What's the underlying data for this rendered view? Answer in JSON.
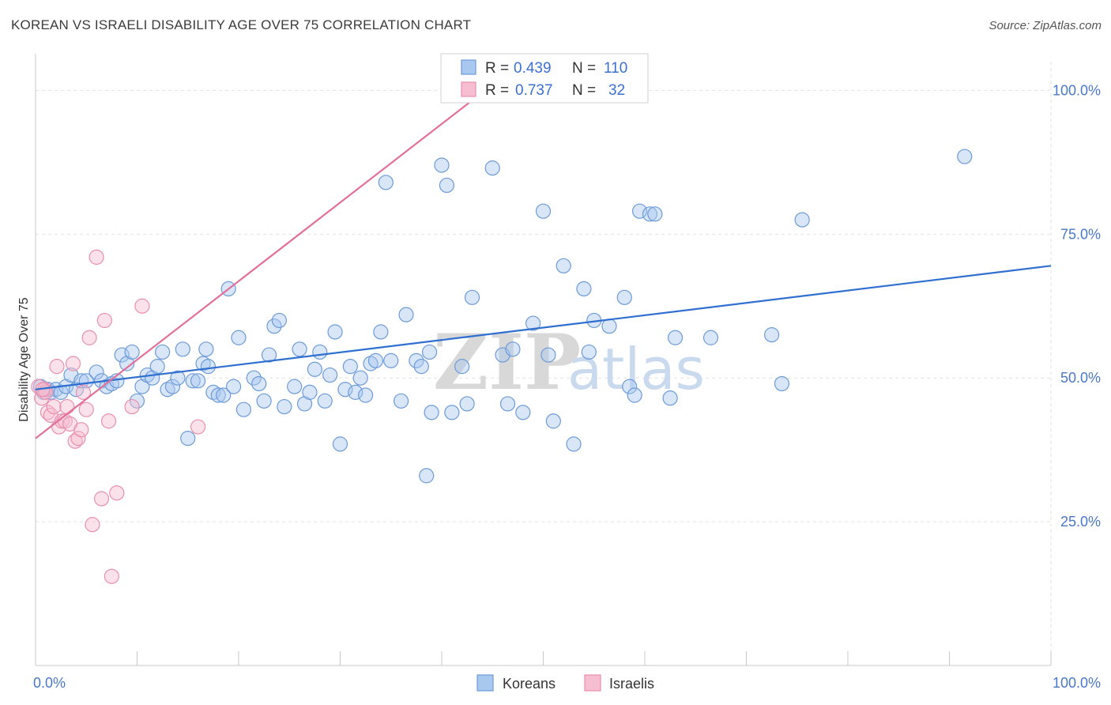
{
  "title": "KOREAN VS ISRAELI DISABILITY AGE OVER 75 CORRELATION CHART",
  "source": "Source: ZipAtlas.com",
  "watermark": {
    "zip": "ZIP",
    "atlas": "atlas"
  },
  "colors": {
    "korean_fill": "#a9c8ef",
    "korean_stroke": "#6d9bd8",
    "korean_line": "#2f6fd0",
    "israeli_fill": "#f6bed0",
    "israeli_stroke": "#e98fae",
    "israeli_line": "#e0709a",
    "axis_text": "#4a78c8",
    "grid": "#e2e2e2"
  },
  "legend": {
    "rows": [
      {
        "r_label": "R =",
        "r_value": "0.439",
        "n_label": "N =",
        "n_value": "110"
      },
      {
        "r_label": "R =",
        "r_value": "0.737",
        "n_label": "N =",
        "n_value": "32"
      }
    ]
  },
  "bottom_legend": [
    "Koreans",
    "Israelis"
  ],
  "chart_data": {
    "type": "scatter",
    "title": "KOREAN VS ISRAELI DISABILITY AGE OVER 75 CORRELATION CHART",
    "xlabel": "",
    "ylabel": "Disability Age Over 75",
    "xlim": [
      0,
      100
    ],
    "ylim": [
      0,
      105
    ],
    "x_tick_labels": [
      "0.0%",
      "100.0%"
    ],
    "y_ticks": [
      {
        "value": 100,
        "label": "100.0%"
      },
      {
        "value": 75,
        "label": "75.0%"
      },
      {
        "value": 50,
        "label": "50.0%"
      },
      {
        "value": 25,
        "label": "25.0%"
      }
    ],
    "x_minor_ticks": [
      0,
      10,
      20,
      30,
      40,
      50,
      60,
      70,
      80,
      90,
      100
    ],
    "grid": true,
    "legend_position": "top-center",
    "series": [
      {
        "name": "Koreans",
        "trend": {
          "x": [
            0,
            100
          ],
          "y": [
            48.0,
            69.5
          ]
        },
        "points": [
          {
            "x": 0.5,
            "y": 48.5
          },
          {
            "x": 0.8,
            "y": 47.5
          },
          {
            "x": 1.2,
            "y": 48.0
          },
          {
            "x": 1.5,
            "y": 47.5
          },
          {
            "x": 2.0,
            "y": 48.0
          },
          {
            "x": 2.5,
            "y": 47.5
          },
          {
            "x": 3.0,
            "y": 48.5
          },
          {
            "x": 3.5,
            "y": 50.5
          },
          {
            "x": 4.0,
            "y": 48.0
          },
          {
            "x": 4.5,
            "y": 49.5
          },
          {
            "x": 5.0,
            "y": 49.5
          },
          {
            "x": 6.0,
            "y": 51.0
          },
          {
            "x": 6.5,
            "y": 49.5
          },
          {
            "x": 7.0,
            "y": 48.5
          },
          {
            "x": 7.5,
            "y": 49.0
          },
          {
            "x": 8.0,
            "y": 49.5
          },
          {
            "x": 8.5,
            "y": 54.0
          },
          {
            "x": 9.0,
            "y": 52.5
          },
          {
            "x": 9.5,
            "y": 54.5
          },
          {
            "x": 10.0,
            "y": 46.0
          },
          {
            "x": 10.5,
            "y": 48.5
          },
          {
            "x": 11.0,
            "y": 50.5
          },
          {
            "x": 11.5,
            "y": 50.0
          },
          {
            "x": 12.0,
            "y": 52.0
          },
          {
            "x": 12.5,
            "y": 54.5
          },
          {
            "x": 13.0,
            "y": 48.0
          },
          {
            "x": 13.5,
            "y": 48.5
          },
          {
            "x": 14.0,
            "y": 50.0
          },
          {
            "x": 14.5,
            "y": 55.0
          },
          {
            "x": 15.0,
            "y": 39.5
          },
          {
            "x": 15.5,
            "y": 49.5
          },
          {
            "x": 16.0,
            "y": 49.5
          },
          {
            "x": 16.5,
            "y": 52.5
          },
          {
            "x": 16.8,
            "y": 55.0
          },
          {
            "x": 17.0,
            "y": 52.0
          },
          {
            "x": 17.5,
            "y": 47.5
          },
          {
            "x": 18.0,
            "y": 47.0
          },
          {
            "x": 18.5,
            "y": 47.0
          },
          {
            "x": 19.0,
            "y": 65.5
          },
          {
            "x": 19.5,
            "y": 48.5
          },
          {
            "x": 20.0,
            "y": 57.0
          },
          {
            "x": 20.5,
            "y": 44.5
          },
          {
            "x": 21.5,
            "y": 50.0
          },
          {
            "x": 22.0,
            "y": 49.0
          },
          {
            "x": 22.5,
            "y": 46.0
          },
          {
            "x": 23.0,
            "y": 54.0
          },
          {
            "x": 23.5,
            "y": 59.0
          },
          {
            "x": 24.0,
            "y": 60.0
          },
          {
            "x": 24.5,
            "y": 45.0
          },
          {
            "x": 25.5,
            "y": 48.5
          },
          {
            "x": 26.0,
            "y": 55.0
          },
          {
            "x": 26.5,
            "y": 45.5
          },
          {
            "x": 27.0,
            "y": 47.5
          },
          {
            "x": 27.5,
            "y": 51.5
          },
          {
            "x": 28.0,
            "y": 54.5
          },
          {
            "x": 28.5,
            "y": 46.0
          },
          {
            "x": 29.0,
            "y": 50.5
          },
          {
            "x": 29.5,
            "y": 58.0
          },
          {
            "x": 30.0,
            "y": 38.5
          },
          {
            "x": 30.5,
            "y": 48.0
          },
          {
            "x": 31.0,
            "y": 52.0
          },
          {
            "x": 31.5,
            "y": 47.5
          },
          {
            "x": 32.0,
            "y": 50.0
          },
          {
            "x": 32.5,
            "y": 47.0
          },
          {
            "x": 33.0,
            "y": 52.5
          },
          {
            "x": 33.5,
            "y": 53.0
          },
          {
            "x": 34.0,
            "y": 58.0
          },
          {
            "x": 34.5,
            "y": 84.0
          },
          {
            "x": 35.0,
            "y": 53.0
          },
          {
            "x": 36.0,
            "y": 46.0
          },
          {
            "x": 36.5,
            "y": 61.0
          },
          {
            "x": 37.5,
            "y": 53.0
          },
          {
            "x": 38.0,
            "y": 52.0
          },
          {
            "x": 38.5,
            "y": 33.0
          },
          {
            "x": 38.8,
            "y": 54.5
          },
          {
            "x": 39.0,
            "y": 44.0
          },
          {
            "x": 40.0,
            "y": 87.0
          },
          {
            "x": 40.5,
            "y": 83.5
          },
          {
            "x": 41.0,
            "y": 44.0
          },
          {
            "x": 42.0,
            "y": 52.0
          },
          {
            "x": 42.5,
            "y": 45.5
          },
          {
            "x": 43.0,
            "y": 64.0
          },
          {
            "x": 45.0,
            "y": 86.5
          },
          {
            "x": 46.0,
            "y": 54.0
          },
          {
            "x": 46.5,
            "y": 45.5
          },
          {
            "x": 47.0,
            "y": 55.0
          },
          {
            "x": 48.0,
            "y": 44.0
          },
          {
            "x": 49.0,
            "y": 59.5
          },
          {
            "x": 50.0,
            "y": 79.0
          },
          {
            "x": 50.5,
            "y": 54.0
          },
          {
            "x": 51.0,
            "y": 42.5
          },
          {
            "x": 52.0,
            "y": 69.5
          },
          {
            "x": 53.0,
            "y": 38.5
          },
          {
            "x": 54.0,
            "y": 65.5
          },
          {
            "x": 54.5,
            "y": 54.5
          },
          {
            "x": 55.0,
            "y": 60.0
          },
          {
            "x": 56.5,
            "y": 59.0
          },
          {
            "x": 58.0,
            "y": 64.0
          },
          {
            "x": 58.5,
            "y": 48.5
          },
          {
            "x": 59.0,
            "y": 47.0
          },
          {
            "x": 59.5,
            "y": 79.0
          },
          {
            "x": 60.5,
            "y": 78.5
          },
          {
            "x": 61.0,
            "y": 78.5
          },
          {
            "x": 62.5,
            "y": 46.5
          },
          {
            "x": 63.0,
            "y": 57.0
          },
          {
            "x": 66.5,
            "y": 57.0
          },
          {
            "x": 72.5,
            "y": 57.5
          },
          {
            "x": 73.5,
            "y": 49.0
          },
          {
            "x": 75.5,
            "y": 77.5
          },
          {
            "x": 91.5,
            "y": 88.5
          }
        ]
      },
      {
        "name": "Israelis",
        "trend": {
          "x": [
            0,
            45
          ],
          "y": [
            39.5,
            101.0
          ]
        },
        "points": [
          {
            "x": 0.3,
            "y": 48.5
          },
          {
            "x": 0.6,
            "y": 46.5
          },
          {
            "x": 0.9,
            "y": 48.0
          },
          {
            "x": 1.2,
            "y": 44.0
          },
          {
            "x": 1.5,
            "y": 43.5
          },
          {
            "x": 1.8,
            "y": 45.0
          },
          {
            "x": 2.1,
            "y": 52.0
          },
          {
            "x": 2.3,
            "y": 41.5
          },
          {
            "x": 2.6,
            "y": 42.5
          },
          {
            "x": 2.9,
            "y": 42.5
          },
          {
            "x": 3.1,
            "y": 45.0
          },
          {
            "x": 3.4,
            "y": 42.0
          },
          {
            "x": 3.7,
            "y": 52.5
          },
          {
            "x": 3.9,
            "y": 39.0
          },
          {
            "x": 4.2,
            "y": 39.5
          },
          {
            "x": 4.5,
            "y": 41.0
          },
          {
            "x": 4.7,
            "y": 47.5
          },
          {
            "x": 5.0,
            "y": 44.5
          },
          {
            "x": 5.3,
            "y": 57.0
          },
          {
            "x": 5.6,
            "y": 24.5
          },
          {
            "x": 6.0,
            "y": 71.0
          },
          {
            "x": 6.5,
            "y": 29.0
          },
          {
            "x": 6.8,
            "y": 60.0
          },
          {
            "x": 7.2,
            "y": 42.5
          },
          {
            "x": 7.5,
            "y": 15.5
          },
          {
            "x": 8.0,
            "y": 30.0
          },
          {
            "x": 9.5,
            "y": 45.0
          },
          {
            "x": 10.5,
            "y": 62.5
          },
          {
            "x": 16.0,
            "y": 41.5
          },
          {
            "x": 1.0,
            "y": 47.5
          },
          {
            "x": 0.7,
            "y": 48.0
          },
          {
            "x": 44.5,
            "y": 101.5
          }
        ]
      }
    ]
  }
}
